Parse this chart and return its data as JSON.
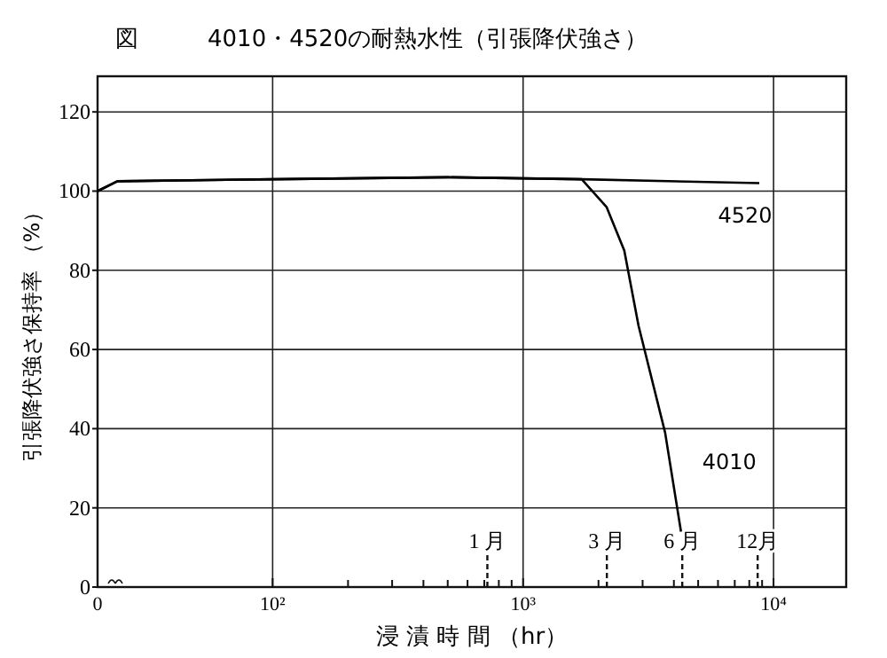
{
  "chart_data": {
    "type": "line",
    "title": "図　　　4010・4520の耐熱水性（引張降伏強さ）",
    "xlabel": "浸 漬 時 間 （hr）",
    "ylabel": "引張降伏強さ保持率 （%）",
    "log": "x",
    "xlim": [
      0,
      19500
    ],
    "ylim": [
      0,
      129
    ],
    "xticks": [
      0,
      {
        "value": 100,
        "label": "10²"
      },
      {
        "value": 200,
        "label": null
      },
      {
        "value": 300,
        "label": null
      },
      {
        "value": 400,
        "label": null
      },
      {
        "value": 500,
        "label": null
      },
      {
        "value": 600,
        "label": null
      },
      {
        "value": 700,
        "label": null
      },
      {
        "value": 800,
        "label": null
      },
      {
        "value": 900,
        "label": null
      },
      {
        "value": 1000,
        "label": "10³"
      },
      {
        "value": 2000,
        "label": null
      },
      {
        "value": 3000,
        "label": null
      },
      {
        "value": 4000,
        "label": null
      },
      {
        "value": 5000,
        "label": null
      },
      {
        "value": 6000,
        "label": null
      },
      {
        "value": 7000,
        "label": null
      },
      {
        "value": 8000,
        "label": null
      },
      {
        "value": 9000,
        "label": null
      },
      {
        "value": 10000,
        "label": "10⁴"
      }
    ],
    "yticks": [
      0,
      20,
      40,
      60,
      80,
      100,
      120
    ],
    "grid": true,
    "legend": false,
    "marker": "none",
    "line_style": "solid",
    "series": [
      {
        "name": "4520",
        "color": "#000000",
        "x": [
          20,
          24,
          100,
          500,
          1714,
          8770
        ],
        "values": [
          100,
          102.5,
          103,
          103.5,
          103,
          102
        ]
      },
      {
        "name": "4010",
        "color": "#000000",
        "x": [
          20,
          24,
          100,
          500,
          1714,
          2153,
          2535,
          2890,
          3690,
          4270
        ],
        "values": [
          100,
          102.5,
          103,
          103.5,
          103,
          96,
          85,
          66,
          39,
          14
        ]
      }
    ],
    "ref_lines": [
      {
        "axis": "x",
        "value": 720,
        "label": "1 月",
        "line_style": "dashed"
      },
      {
        "axis": "x",
        "value": 2160,
        "label": "3 月",
        "line_style": "dashed"
      },
      {
        "axis": "x",
        "value": 4320,
        "label": "6 月",
        "line_style": "dashed"
      },
      {
        "axis": "x",
        "value": 8640,
        "label": "12月",
        "line_style": "dashed"
      }
    ]
  }
}
